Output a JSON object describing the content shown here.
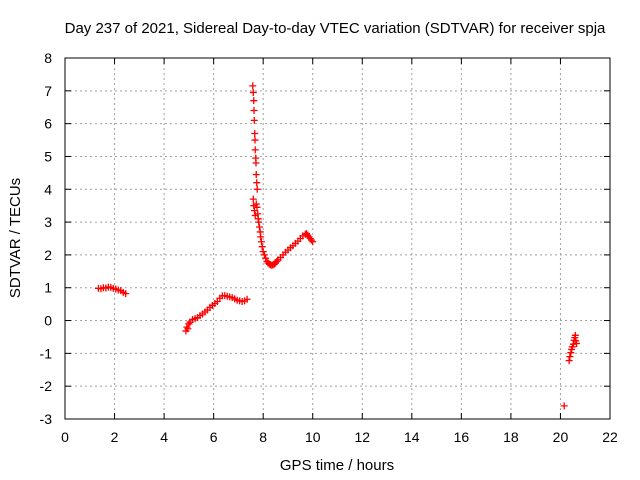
{
  "chart_data": {
    "type": "scatter",
    "title": "Day 237 of 2021, Sidereal Day-to-day VTEC variation (SDTVAR) for receiver spja",
    "xlabel": "GPS time / hours",
    "ylabel": "SDTVAR / TECUs",
    "xlim": [
      0,
      22
    ],
    "ylim": [
      -3,
      8
    ],
    "xticks": [
      0,
      2,
      4,
      6,
      8,
      10,
      12,
      14,
      16,
      18,
      20,
      22
    ],
    "yticks": [
      -3,
      -2,
      -1,
      0,
      1,
      2,
      3,
      4,
      5,
      6,
      7,
      8
    ],
    "grid": true,
    "marker": "+",
    "color": "#ff0000",
    "series": [
      {
        "name": "SDTVAR",
        "points": [
          [
            1.35,
            0.98
          ],
          [
            1.45,
            0.97
          ],
          [
            1.55,
            1.0
          ],
          [
            1.65,
            0.99
          ],
          [
            1.75,
            1.02
          ],
          [
            1.85,
            1.01
          ],
          [
            1.95,
            0.98
          ],
          [
            2.05,
            0.96
          ],
          [
            2.15,
            0.93
          ],
          [
            2.25,
            0.91
          ],
          [
            2.35,
            0.86
          ],
          [
            2.45,
            0.82
          ],
          [
            4.88,
            -0.32
          ],
          [
            4.92,
            -0.2
          ],
          [
            4.96,
            -0.25
          ],
          [
            5.0,
            -0.1
          ],
          [
            5.05,
            -0.05
          ],
          [
            5.15,
            0.03
          ],
          [
            5.25,
            0.06
          ],
          [
            5.35,
            0.09
          ],
          [
            5.45,
            0.15
          ],
          [
            5.55,
            0.2
          ],
          [
            5.65,
            0.26
          ],
          [
            5.75,
            0.32
          ],
          [
            5.85,
            0.4
          ],
          [
            5.95,
            0.46
          ],
          [
            6.05,
            0.52
          ],
          [
            6.15,
            0.58
          ],
          [
            6.25,
            0.68
          ],
          [
            6.35,
            0.75
          ],
          [
            6.45,
            0.76
          ],
          [
            6.55,
            0.74
          ],
          [
            6.65,
            0.72
          ],
          [
            6.75,
            0.7
          ],
          [
            6.85,
            0.66
          ],
          [
            6.95,
            0.62
          ],
          [
            7.05,
            0.6
          ],
          [
            7.15,
            0.58
          ],
          [
            7.25,
            0.6
          ],
          [
            7.35,
            0.65
          ],
          [
            7.58,
            7.15
          ],
          [
            7.6,
            6.95
          ],
          [
            7.62,
            6.7
          ],
          [
            7.63,
            6.4
          ],
          [
            7.64,
            6.1
          ],
          [
            7.66,
            5.7
          ],
          [
            7.67,
            5.5
          ],
          [
            7.68,
            5.2
          ],
          [
            7.7,
            4.95
          ],
          [
            7.71,
            4.8
          ],
          [
            7.72,
            4.45
          ],
          [
            7.74,
            4.2
          ],
          [
            7.76,
            4.0
          ],
          [
            7.6,
            3.7
          ],
          [
            7.62,
            3.5
          ],
          [
            7.65,
            3.35
          ],
          [
            7.68,
            3.2
          ],
          [
            7.72,
            3.55
          ],
          [
            7.75,
            3.45
          ],
          [
            7.78,
            3.25
          ],
          [
            7.8,
            3.1
          ],
          [
            7.82,
            3.0
          ],
          [
            7.85,
            2.85
          ],
          [
            7.88,
            2.7
          ],
          [
            7.9,
            2.55
          ],
          [
            7.93,
            2.4
          ],
          [
            7.96,
            2.25
          ],
          [
            8.0,
            2.1
          ],
          [
            8.05,
            2.0
          ],
          [
            8.1,
            1.9
          ],
          [
            8.15,
            1.8
          ],
          [
            8.2,
            1.75
          ],
          [
            8.25,
            1.72
          ],
          [
            8.3,
            1.7
          ],
          [
            8.35,
            1.68
          ],
          [
            8.4,
            1.7
          ],
          [
            8.45,
            1.72
          ],
          [
            8.5,
            1.75
          ],
          [
            8.55,
            1.8
          ],
          [
            8.6,
            1.85
          ],
          [
            8.7,
            1.92
          ],
          [
            8.8,
            2.0
          ],
          [
            8.9,
            2.08
          ],
          [
            9.0,
            2.15
          ],
          [
            9.1,
            2.22
          ],
          [
            9.2,
            2.28
          ],
          [
            9.3,
            2.35
          ],
          [
            9.4,
            2.42
          ],
          [
            9.5,
            2.5
          ],
          [
            9.6,
            2.58
          ],
          [
            9.7,
            2.63
          ],
          [
            9.75,
            2.65
          ],
          [
            9.8,
            2.6
          ],
          [
            9.85,
            2.55
          ],
          [
            9.9,
            2.5
          ],
          [
            9.95,
            2.45
          ],
          [
            10.0,
            2.4
          ],
          [
            20.15,
            -2.6
          ],
          [
            20.35,
            -1.22
          ],
          [
            20.38,
            -1.1
          ],
          [
            20.42,
            -0.98
          ],
          [
            20.45,
            -0.88
          ],
          [
            20.48,
            -0.8
          ],
          [
            20.52,
            -0.72
          ],
          [
            20.55,
            -0.6
          ],
          [
            20.58,
            -0.52
          ],
          [
            20.6,
            -0.45
          ],
          [
            20.62,
            -0.62
          ],
          [
            20.65,
            -0.7
          ]
        ]
      }
    ]
  }
}
